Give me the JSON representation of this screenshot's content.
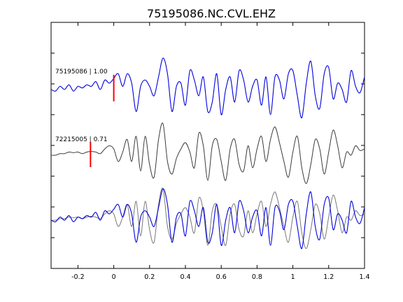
{
  "chart_data": {
    "type": "line",
    "title": "75195086.NC.CVL.EHZ",
    "xlim": [
      -0.35,
      1.4
    ],
    "x_ticks": [
      -0.2,
      0,
      0.2,
      0.4,
      0.6,
      0.8,
      1,
      1.2,
      1.4
    ],
    "x_tick_labels": [
      "-0.2",
      "0",
      "0.2",
      "0.4",
      "0.6",
      "0.8",
      "1",
      "1.2",
      "1.4"
    ],
    "grid": false,
    "colors": {
      "trace1": "#0000dd",
      "trace2": "#3a3a3a",
      "overlay": "#777777",
      "pick": "#ff0000"
    },
    "series": [
      {
        "name": "75195086 | 1.00",
        "pick_time": 0.0,
        "x": [
          -0.35,
          -0.325,
          -0.3,
          -0.275,
          -0.25,
          -0.225,
          -0.2,
          -0.175,
          -0.15,
          -0.125,
          -0.1,
          -0.075,
          -0.05,
          -0.025,
          0,
          0.025,
          0.05,
          0.075,
          0.1,
          0.125,
          0.15,
          0.175,
          0.2,
          0.225,
          0.25,
          0.275,
          0.3,
          0.325,
          0.35,
          0.375,
          0.4,
          0.425,
          0.45,
          0.475,
          0.5,
          0.525,
          0.55,
          0.575,
          0.6,
          0.625,
          0.65,
          0.675,
          0.7,
          0.725,
          0.75,
          0.775,
          0.8,
          0.825,
          0.85,
          0.875,
          0.9,
          0.925,
          0.95,
          0.975,
          1,
          1.025,
          1.05,
          1.075,
          1.1,
          1.125,
          1.15,
          1.175,
          1.2,
          1.225,
          1.25,
          1.275,
          1.3,
          1.325,
          1.35,
          1.375,
          1.4
        ],
        "y": [
          0,
          -0.05,
          0.1,
          0,
          0.15,
          -0.05,
          0.1,
          0.05,
          0.15,
          0.1,
          0.25,
          0,
          0.3,
          0.2,
          0.35,
          0.5,
          0.1,
          0.5,
          0.2,
          -0.7,
          0.1,
          0.3,
          0.1,
          -0.2,
          0.4,
          1.0,
          0.5,
          -0.7,
          0.1,
          0.2,
          -0.5,
          0.6,
          0.3,
          -0.2,
          0.4,
          -0.7,
          -0.4,
          0.5,
          -0.8,
          0,
          0.4,
          -0.4,
          0.6,
          0.3,
          -0.4,
          0.1,
          0.3,
          -0.5,
          0.4,
          -0.8,
          0.4,
          0.3,
          -0.3,
          0.5,
          0.6,
          -0.2,
          -0.9,
          0.2,
          0.9,
          -0.2,
          -0.6,
          0.5,
          0.7,
          -0.3,
          0.2,
          0.0,
          -0.4,
          0.6,
          0.1,
          -0.1,
          0.4
        ]
      },
      {
        "name": "72215005 | 0.71",
        "pick_time": -0.13,
        "x": [
          -0.35,
          -0.325,
          -0.3,
          -0.275,
          -0.25,
          -0.225,
          -0.2,
          -0.175,
          -0.15,
          -0.125,
          -0.1,
          -0.075,
          -0.05,
          -0.025,
          0,
          0.025,
          0.05,
          0.075,
          0.1,
          0.125,
          0.15,
          0.175,
          0.2,
          0.225,
          0.25,
          0.275,
          0.3,
          0.325,
          0.35,
          0.375,
          0.4,
          0.425,
          0.45,
          0.475,
          0.5,
          0.525,
          0.55,
          0.575,
          0.6,
          0.625,
          0.65,
          0.675,
          0.7,
          0.725,
          0.75,
          0.775,
          0.8,
          0.825,
          0.85,
          0.875,
          0.9,
          0.925,
          0.95,
          0.975,
          1,
          1.025,
          1.05,
          1.075,
          1.1,
          1.125,
          1.15,
          1.175,
          1.2,
          1.225,
          1.25,
          1.275,
          1.3,
          1.325,
          1.35,
          1.375,
          1.4
        ],
        "y": [
          0,
          0,
          0.05,
          0.05,
          0.1,
          0.08,
          0.1,
          0.05,
          0.1,
          0.12,
          0.1,
          0.05,
          0.2,
          0.3,
          0.2,
          -0.2,
          0.1,
          0.5,
          -0.2,
          0.6,
          -0.5,
          0.6,
          -0.3,
          -0.7,
          0.5,
          1.0,
          -0.2,
          -0.6,
          -0.1,
          0.2,
          0.4,
          0.1,
          -0.4,
          0.7,
          0.3,
          -0.8,
          0.3,
          0.5,
          -0.2,
          -0.8,
          0.2,
          0.5,
          -0.3,
          -0.5,
          0.3,
          -0.4,
          0.2,
          0.6,
          -0.2,
          0.5,
          0.9,
          0.4,
          -0.2,
          -0.7,
          0.1,
          0.6,
          -0.4,
          -0.9,
          -0.3,
          0.5,
          0.2,
          -0.6,
          0.1,
          0.8,
          0.3,
          -0.4,
          0.1,
          0.0,
          0.3,
          0.15,
          0.2
        ]
      }
    ]
  }
}
